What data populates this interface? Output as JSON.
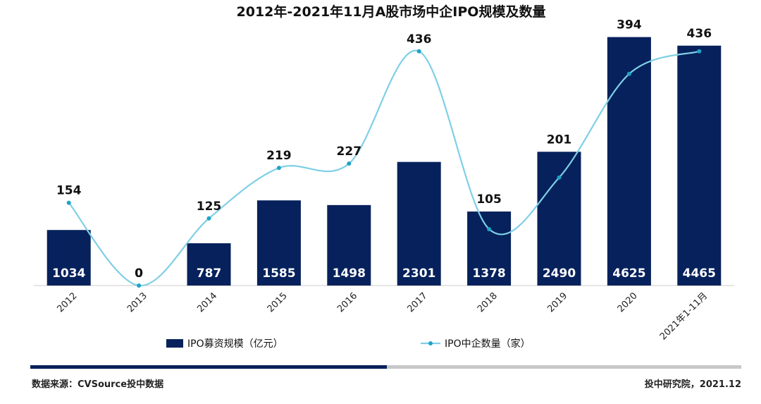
{
  "chart_data": {
    "title": "2012年-2021年11月A股市场中企IPO规模及数量",
    "type": "bar",
    "categories": [
      "2012",
      "2013",
      "2014",
      "2015",
      "2016",
      "2017",
      "2018",
      "2019",
      "2020",
      "2021年1-11月"
    ],
    "series": [
      {
        "name": "IPO募资规模（亿元）",
        "type": "bar",
        "values": [
          1034,
          0,
          787,
          1585,
          1498,
          2301,
          1378,
          2490,
          4625,
          4465
        ]
      },
      {
        "name": "IPO中企数量（家）",
        "type": "line",
        "values": [
          154,
          0,
          125,
          219,
          227,
          436,
          105,
          201,
          394,
          436
        ]
      }
    ],
    "bar_ylim": [
      0,
      5000
    ],
    "line_ylim": [
      0,
      500
    ],
    "grid": false,
    "legend_position": "bottom"
  },
  "colors": {
    "bar": "#06215b",
    "line": "#7fcfe6",
    "marker": "#1ea3c8",
    "progress_dark": "#06215b",
    "progress_light": "#c8c8c8"
  },
  "footer": {
    "source": "数据来源：CVSource投中数据",
    "credit": "投中研究院，2021.12"
  }
}
